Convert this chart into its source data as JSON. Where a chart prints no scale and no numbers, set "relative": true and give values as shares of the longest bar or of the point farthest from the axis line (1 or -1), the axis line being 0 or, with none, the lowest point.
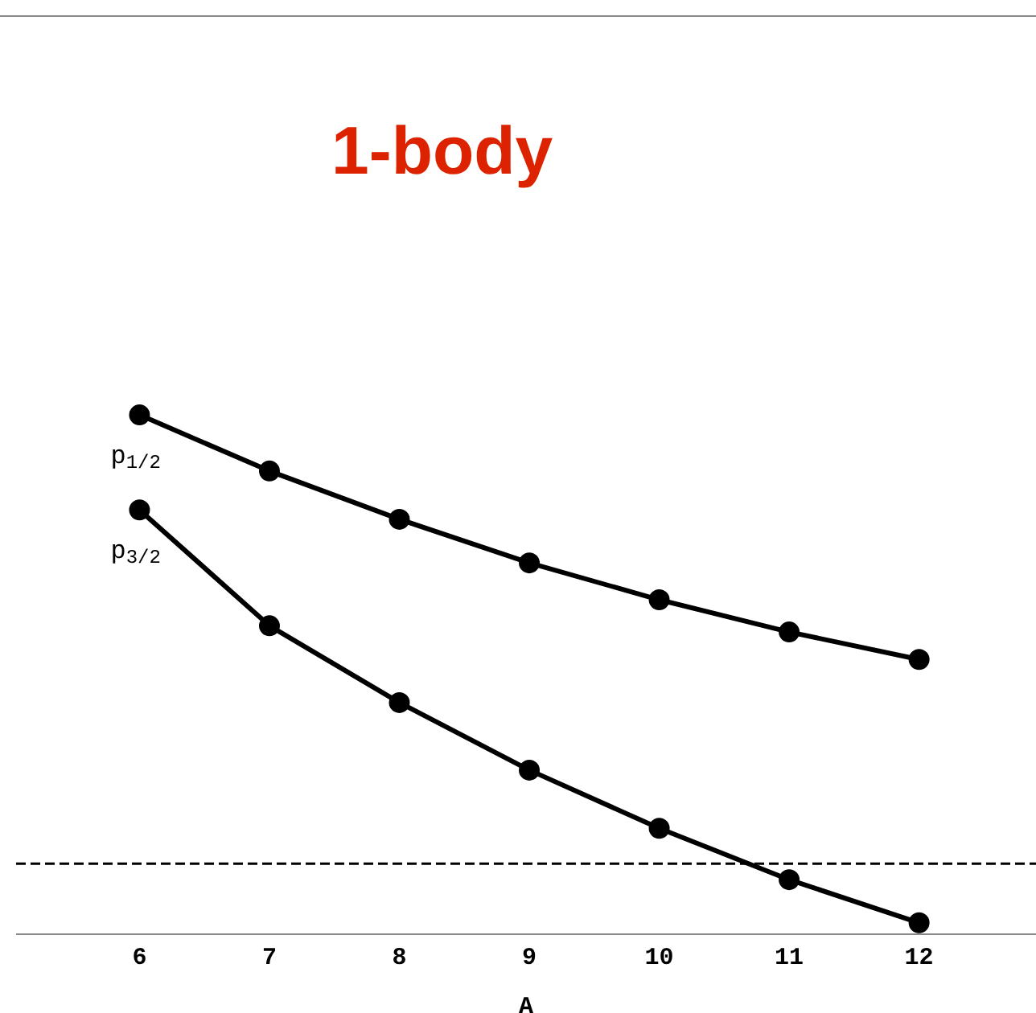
{
  "chart_data": {
    "type": "line",
    "title": "1-body",
    "xlabel": "A",
    "relative": true,
    "x": [
      6,
      7,
      8,
      9,
      10,
      11,
      12
    ],
    "xlim": [
      5.05,
      12.9
    ],
    "xticks": [
      6,
      7,
      8,
      9,
      10,
      11,
      12
    ],
    "series": [
      {
        "name": "p$_{1/2}$",
        "color": "#000000",
        "values": [
          1,
          0.892,
          0.799,
          0.715,
          0.644,
          0.582,
          0.529
        ]
      },
      {
        "name": "p$_{3/2}$",
        "color": "#000000",
        "values": [
          0.817,
          0.594,
          0.446,
          0.316,
          0.204,
          0.105,
          0.022
        ]
      }
    ],
    "ref_lines": [
      {
        "axis": "y",
        "value": 0.136,
        "line_style": "dashed",
        "color": "#000000"
      }
    ],
    "marker": "circle",
    "line_style": "solid",
    "grid": false,
    "legend": false
  }
}
